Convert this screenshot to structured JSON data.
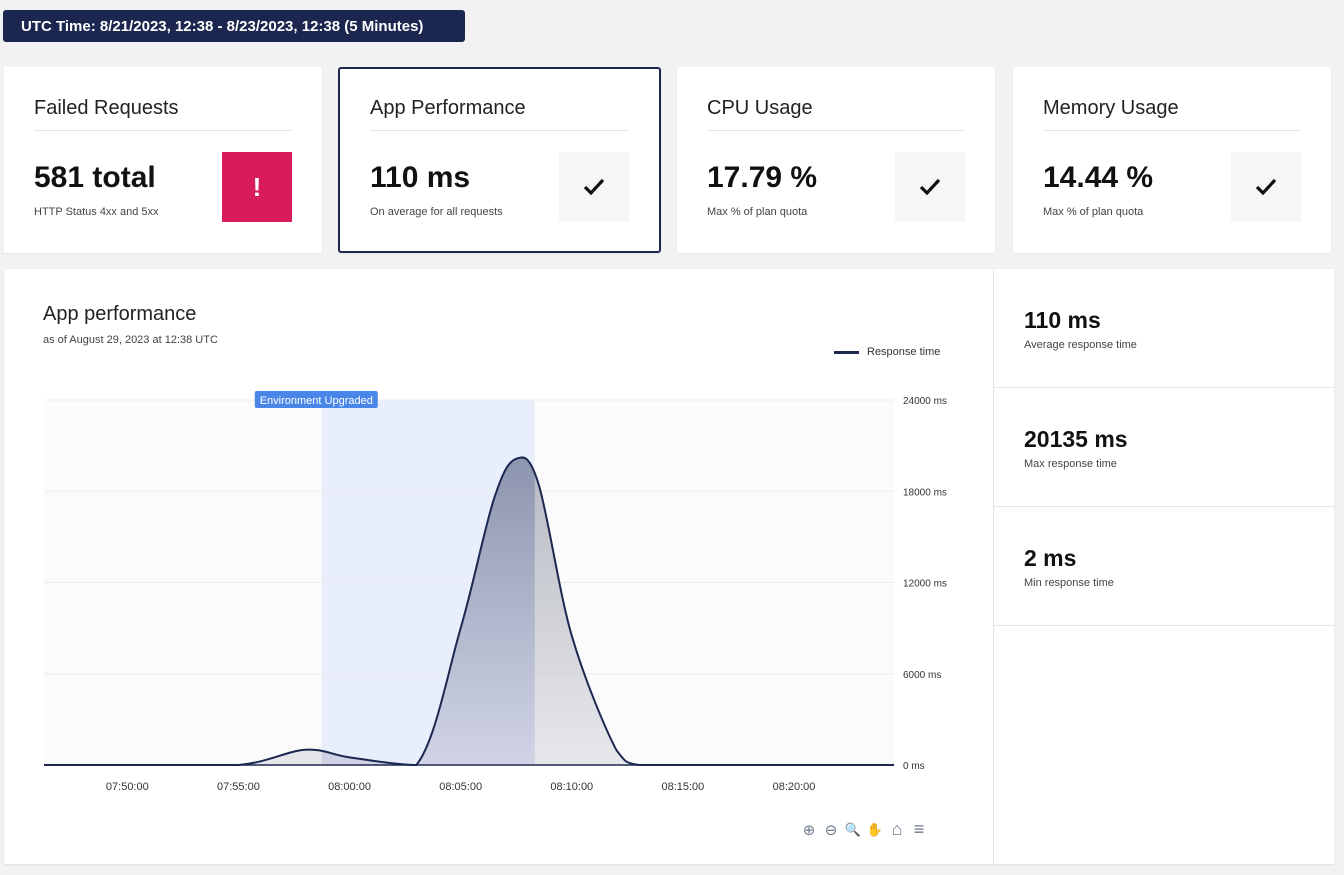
{
  "header": {
    "time_range": "UTC Time: 8/21/2023, 12:38 - 8/23/2023, 12:38 (5 Minutes)"
  },
  "cards": [
    {
      "title": "Failed Requests",
      "value": "581 total",
      "sub": "HTTP Status 4xx and 5xx",
      "status": "!",
      "status_icon": "exclamation-icon",
      "status_color": "#d81b5a"
    },
    {
      "title": "App Performance",
      "value": "110 ms",
      "sub": "On average for all requests",
      "status_icon": "check-icon",
      "selected": true
    },
    {
      "title": "CPU Usage",
      "value": "17.79 %",
      "sub": "Max % of plan quota",
      "status_icon": "check-icon"
    },
    {
      "title": "Memory Usage",
      "value": "14.44 %",
      "sub": "Max % of plan quota",
      "status_icon": "check-icon"
    }
  ],
  "chart": {
    "title": "App performance",
    "subtitle": "as of August 29, 2023 at 12:38 UTC",
    "legend": "Response time",
    "annotation": "Environment Upgraded"
  },
  "chart_data": {
    "type": "area",
    "x": [
      "07:46:15",
      "07:50:00",
      "07:55:00",
      "07:58:00",
      "08:00:00",
      "08:03:00",
      "08:05:00",
      "08:06:30",
      "08:07:30",
      "08:08:30",
      "08:10:00",
      "08:12:00",
      "08:13:00",
      "08:15:00",
      "08:20:00",
      "08:24:30"
    ],
    "series": [
      {
        "name": "Response time",
        "values": [
          0,
          0,
          0,
          1000,
          500,
          0,
          9000,
          17500,
          20135,
          18500,
          8500,
          1000,
          0,
          0,
          0,
          0
        ]
      }
    ],
    "xticks": [
      "07:50:00",
      "07:55:00",
      "08:00:00",
      "08:05:00",
      "08:10:00",
      "08:15:00",
      "08:20:00"
    ],
    "yticks": [
      "0 ms",
      "6000 ms",
      "12000 ms",
      "18000 ms",
      "24000 ms"
    ],
    "ylim": [
      0,
      24000
    ],
    "band": {
      "from": "07:58:45",
      "to": "08:08:20",
      "label": "Environment Upgraded"
    },
    "line_color": "#1c2750",
    "grid": true,
    "legend_position": "top-right"
  },
  "tools": [
    {
      "name": "zoom-in-icon",
      "glyph": "⊕"
    },
    {
      "name": "zoom-out-icon",
      "glyph": "⊖"
    },
    {
      "name": "selection-zoom-icon",
      "glyph": "🔍"
    },
    {
      "name": "pan-hand-icon",
      "glyph": "✋"
    },
    {
      "name": "reset-home-icon",
      "glyph": "⌂"
    },
    {
      "name": "menu-icon",
      "glyph": "≡"
    }
  ],
  "stats": [
    {
      "value": "110 ms",
      "label": "Average response time"
    },
    {
      "value": "20135 ms",
      "label": "Max response time"
    },
    {
      "value": "2 ms",
      "label": "Min response time"
    }
  ]
}
